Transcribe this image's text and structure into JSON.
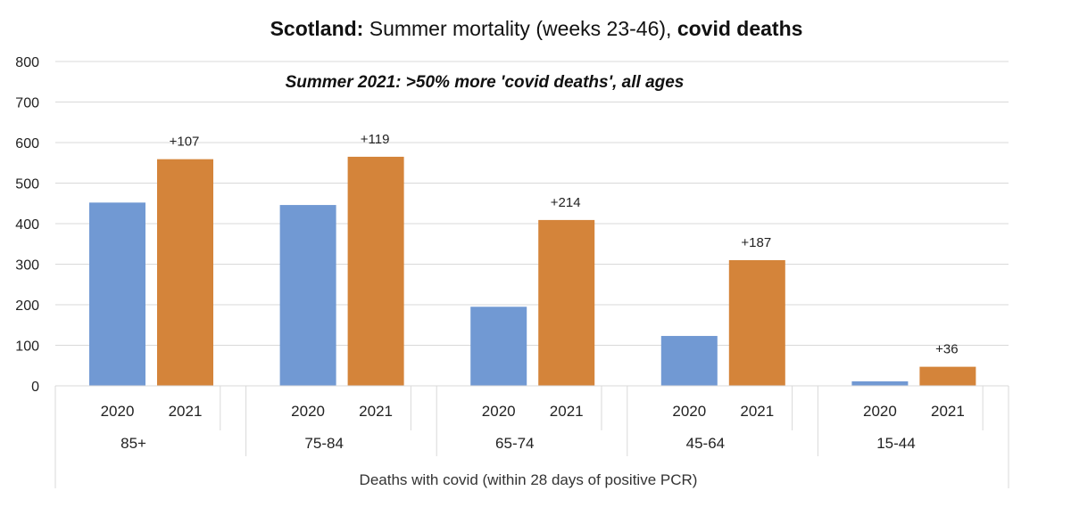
{
  "chart_data": {
    "type": "bar",
    "title_bold_prefix": "Scotland:",
    "title_middle": " Summer mortality (weeks 23-46), ",
    "title_bold_suffix": "covid deaths",
    "annotation": "Summer 2021: >50% more 'covid deaths', all ages",
    "xlabel": "Deaths with covid (within 28 days of positive PCR)",
    "ylabel": "",
    "ylim": [
      0,
      800
    ],
    "yticks": [
      0,
      100,
      200,
      300,
      400,
      500,
      600,
      700,
      800
    ],
    "grid": true,
    "groups": [
      "85+",
      "75-84",
      "65-74",
      "45-64",
      "15-44"
    ],
    "series": [
      {
        "name": "2020",
        "values": [
          452,
          446,
          195,
          123,
          11
        ]
      },
      {
        "name": "2021",
        "values": [
          559,
          565,
          409,
          310,
          47
        ]
      }
    ],
    "data_labels": [
      "+107",
      "+119",
      "+214",
      "+187",
      "+36"
    ],
    "colors": {
      "2020": "#7199d3",
      "2021": "#d4843a",
      "grid": "#d9d9d9",
      "axis_text": "#222222"
    }
  }
}
